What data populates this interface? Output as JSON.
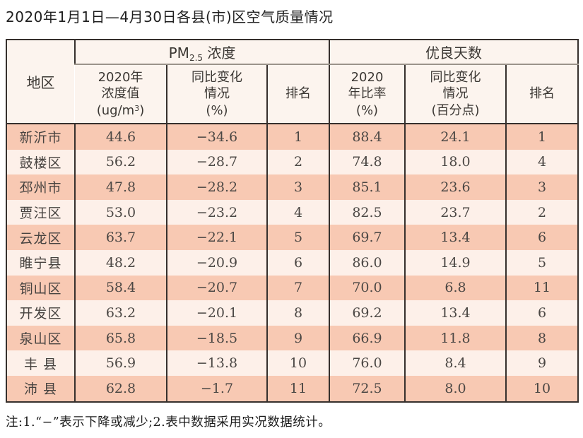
{
  "title": "2020年1月1日—4月30日各县(市)区空气质量情况",
  "table": {
    "region_header": "地区",
    "group_pm25": {
      "prefix": "PM",
      "sub": "2.5",
      "suffix": " 浓度"
    },
    "group_days": "优良天数",
    "sub_headers": {
      "pm_value": {
        "line1": "2020年",
        "line2": "浓度值",
        "unit_prefix": "(ug/m",
        "unit_sup": "3",
        "unit_suffix": ")"
      },
      "pm_change": {
        "line1": "同比变化",
        "line2": "情况",
        "line3": "(%)"
      },
      "pm_rank": "排名",
      "days_rate": {
        "line1": "2020",
        "line2": "年比率",
        "line3": "(%)"
      },
      "days_change": {
        "line1": "同比变化",
        "line2": "情况",
        "line3": "(百分点)"
      },
      "days_rank": "排名"
    },
    "rows": [
      {
        "region": "新沂市",
        "pm_value": "44.6",
        "pm_change": "−34.6",
        "pm_rank": "1",
        "rate": "88.4",
        "rate_change": "24.1",
        "rate_rank": "1"
      },
      {
        "region": "鼓楼区",
        "pm_value": "56.2",
        "pm_change": "−28.7",
        "pm_rank": "2",
        "rate": "74.8",
        "rate_change": "18.0",
        "rate_rank": "4"
      },
      {
        "region": "邳州市",
        "pm_value": "47.8",
        "pm_change": "−28.2",
        "pm_rank": "3",
        "rate": "85.1",
        "rate_change": "23.6",
        "rate_rank": "3"
      },
      {
        "region": "贾汪区",
        "pm_value": "53.0",
        "pm_change": "−23.2",
        "pm_rank": "4",
        "rate": "82.5",
        "rate_change": "23.7",
        "rate_rank": "2"
      },
      {
        "region": "云龙区",
        "pm_value": "63.7",
        "pm_change": "−22.1",
        "pm_rank": "5",
        "rate": "69.7",
        "rate_change": "13.4",
        "rate_rank": "6"
      },
      {
        "region": "睢宁县",
        "pm_value": "48.2",
        "pm_change": "−20.9",
        "pm_rank": "6",
        "rate": "86.0",
        "rate_change": "14.9",
        "rate_rank": "5"
      },
      {
        "region": "铜山区",
        "pm_value": "58.4",
        "pm_change": "−20.7",
        "pm_rank": "7",
        "rate": "70.0",
        "rate_change": "6.8",
        "rate_rank": "11"
      },
      {
        "region": "开发区",
        "pm_value": "63.2",
        "pm_change": "−20.1",
        "pm_rank": "8",
        "rate": "69.2",
        "rate_change": "13.4",
        "rate_rank": "6"
      },
      {
        "region": "泉山区",
        "pm_value": "65.8",
        "pm_change": "−18.5",
        "pm_rank": "9",
        "rate": "66.9",
        "rate_change": "11.8",
        "rate_rank": "8"
      },
      {
        "region": "丰 县",
        "pm_value": "56.9",
        "pm_change": "−13.8",
        "pm_rank": "10",
        "rate": "76.0",
        "rate_change": "8.4",
        "rate_rank": "9"
      },
      {
        "region": "沛 县",
        "pm_value": "62.8",
        "pm_change": "−1.7",
        "pm_rank": "11",
        "rate": "72.5",
        "rate_change": "8.0",
        "rate_rank": "10"
      }
    ]
  },
  "footnote": "注:1.“−”表示下降或减少;2.表中数据采用实况数据统计。",
  "colors": {
    "row_odd": "#f8c9b3",
    "row_even": "#fdf0e9",
    "header_bg": "#fcf4ee",
    "border": "#36302d",
    "gray_line": "#9b938a"
  }
}
